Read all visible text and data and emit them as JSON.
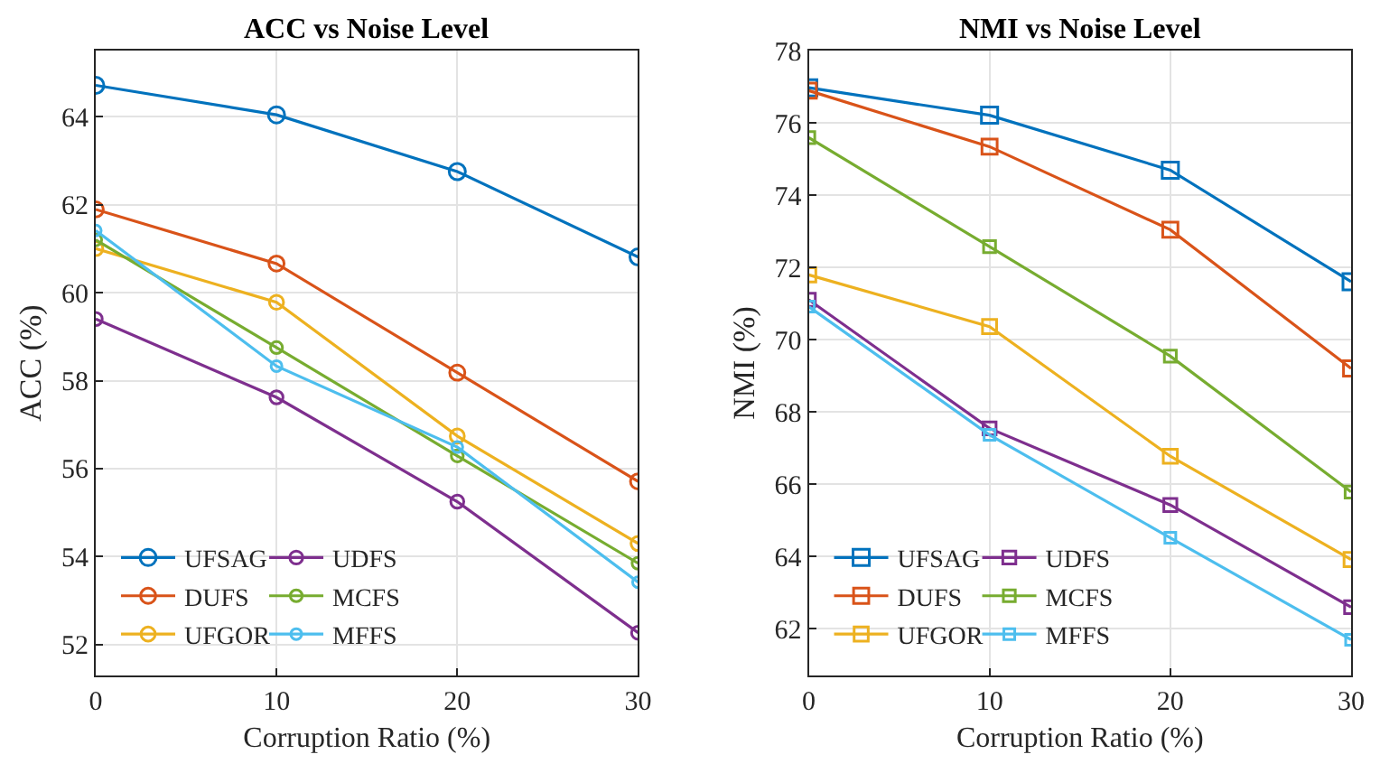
{
  "chart_data": [
    {
      "type": "line",
      "title": "ACC vs Noise Level",
      "xlabel": "Corruption Ratio (%)",
      "ylabel": "ACC (%)",
      "x": [
        0,
        10,
        20,
        30
      ],
      "xlim": [
        0,
        30
      ],
      "xticks": [
        0,
        10,
        20,
        30
      ],
      "ylim": [
        51.3,
        65.5
      ],
      "yticks": [
        52,
        54,
        56,
        58,
        60,
        62,
        64
      ],
      "grid": true,
      "legend": "bottom left",
      "marker": "circle",
      "line_style": "solid",
      "series": [
        {
          "name": "UFSAG",
          "color": "#0072bd",
          "values": [
            64.71,
            64.04,
            62.75,
            60.81
          ]
        },
        {
          "name": "DUFS",
          "color": "#d95319",
          "values": [
            61.89,
            60.66,
            58.18,
            55.71
          ]
        },
        {
          "name": "UFGOR",
          "color": "#edb120",
          "values": [
            61.0,
            59.78,
            56.74,
            54.3
          ]
        },
        {
          "name": "UDFS",
          "color": "#7e2f8e",
          "values": [
            59.4,
            57.62,
            55.25,
            52.27
          ]
        },
        {
          "name": "MCFS",
          "color": "#77ac30",
          "values": [
            61.2,
            58.75,
            56.29,
            53.85
          ]
        },
        {
          "name": "MFFS",
          "color": "#4dbeee",
          "values": [
            61.41,
            58.33,
            56.49,
            53.42
          ]
        }
      ]
    },
    {
      "type": "line",
      "title": "NMI vs Noise Level",
      "xlabel": "Corruption Ratio (%)",
      "ylabel": "NMI (%)",
      "x": [
        0,
        10,
        20,
        30
      ],
      "xlim": [
        0,
        30
      ],
      "xticks": [
        0,
        10,
        20,
        30
      ],
      "ylim": [
        60.7,
        78
      ],
      "yticks": [
        62,
        64,
        66,
        68,
        70,
        72,
        74,
        76,
        78
      ],
      "grid": true,
      "legend": "bottom left",
      "marker": "square",
      "line_style": "solid",
      "series": [
        {
          "name": "UFSAG",
          "color": "#0072bd",
          "values": [
            76.97,
            76.21,
            74.69,
            71.6
          ]
        },
        {
          "name": "DUFS",
          "color": "#d95319",
          "values": [
            76.89,
            75.34,
            73.04,
            69.2
          ]
        },
        {
          "name": "UFGOR",
          "color": "#edb120",
          "values": [
            71.79,
            70.36,
            66.77,
            63.91
          ]
        },
        {
          "name": "UDFS",
          "color": "#7e2f8e",
          "values": [
            71.1,
            67.54,
            65.42,
            62.59
          ]
        },
        {
          "name": "MCFS",
          "color": "#77ac30",
          "values": [
            75.59,
            72.57,
            69.54,
            65.78
          ]
        },
        {
          "name": "MFFS",
          "color": "#4dbeee",
          "values": [
            70.91,
            67.36,
            64.51,
            61.69
          ]
        }
      ]
    }
  ]
}
